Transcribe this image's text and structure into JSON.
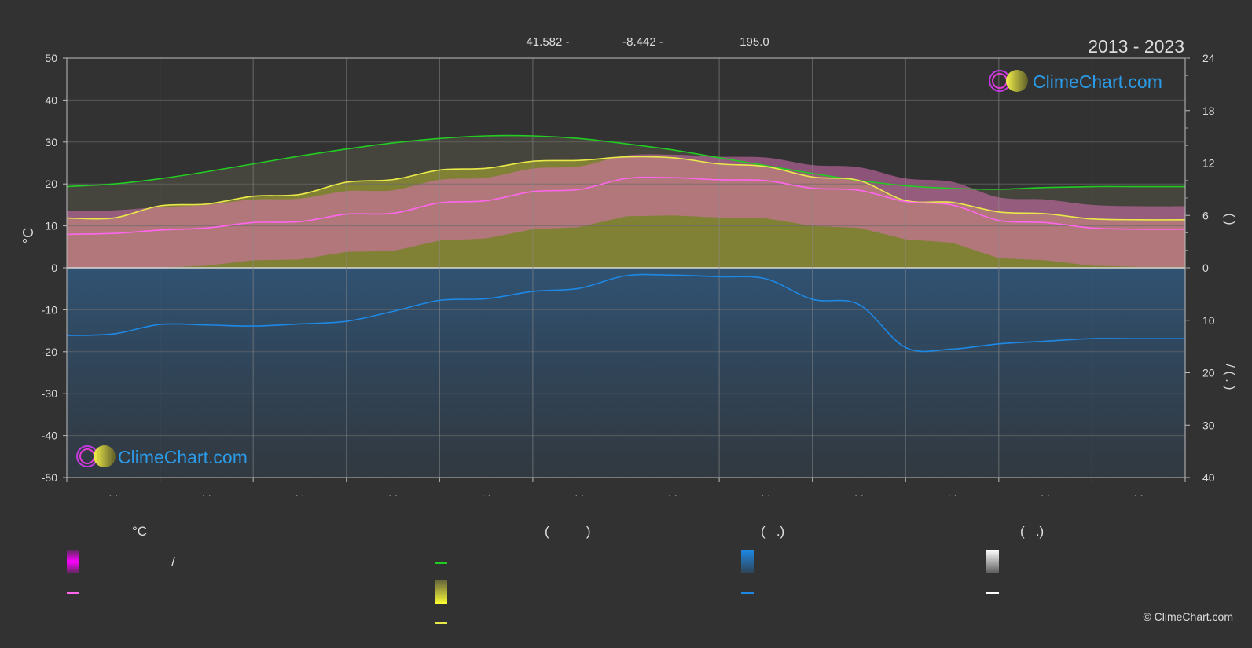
{
  "header": {
    "coords_lat": "41.582 -",
    "coords_lon": "-8.442 -",
    "elevation": "195.0",
    "period": "2013 - 2023"
  },
  "brand": {
    "name": "ClimeChart.com",
    "copyright": "© ClimeChart.com"
  },
  "chart_data": {
    "type": "line",
    "x": [
      0.5,
      1,
      1.5,
      2,
      2.5,
      3,
      3.5,
      4,
      4.5,
      5,
      5.5,
      6,
      6.5,
      7,
      7.5,
      8,
      8.5,
      9,
      9.5,
      10,
      10.5,
      11,
      11.5,
      12,
      12.5
    ],
    "xlim": [
      0.5,
      12.5
    ],
    "month_tick_labels": [
      ". .",
      ". .",
      ". .",
      ". .",
      ". .",
      ". .",
      ". .",
      ". .",
      ". .",
      ". .",
      ". .",
      ". ."
    ],
    "y_left": {
      "label": "°C",
      "lim": [
        -50,
        50
      ],
      "ticks": [
        50,
        40,
        30,
        20,
        10,
        0,
        -10,
        -20,
        -30,
        -40,
        -50
      ]
    },
    "y_right_top": {
      "lim": [
        0,
        24
      ],
      "ticks": [
        24,
        18,
        12,
        6,
        0
      ],
      "label": "(      )"
    },
    "y_right_bottom": {
      "lim": [
        0,
        40
      ],
      "ticks": [
        0,
        10,
        20,
        30,
        40
      ],
      "label": "/     (  .  )"
    },
    "grid": true,
    "series": [
      {
        "key": "daylight",
        "axis": "right_top",
        "color": "#22cc22",
        "values": [
          9.3,
          9.6,
          10.2,
          11.0,
          11.9,
          12.8,
          13.6,
          14.3,
          14.8,
          15.1,
          15.1,
          14.8,
          14.2,
          13.5,
          12.6,
          11.7,
          10.8,
          10.0,
          9.4,
          9.1,
          9.0,
          9.2,
          9.3,
          9.3,
          9.3
        ]
      },
      {
        "key": "sunshine",
        "axis": "right_top",
        "color": "#e8e84a",
        "values": [
          5.7,
          5.7,
          7.1,
          7.3,
          8.2,
          8.4,
          9.8,
          10.1,
          11.2,
          11.4,
          12.2,
          12.3,
          12.7,
          12.6,
          11.9,
          11.6,
          10.4,
          10.0,
          7.7,
          7.5,
          6.4,
          6.2,
          5.6,
          5.5,
          5.5
        ]
      },
      {
        "key": "temp_mean",
        "axis": "left",
        "color": "#ff66ee",
        "values": [
          8.0,
          8.2,
          9.0,
          9.5,
          10.8,
          11.0,
          12.8,
          13.0,
          15.5,
          16.0,
          18.2,
          18.7,
          21.3,
          21.5,
          21.0,
          20.8,
          19.0,
          18.5,
          15.8,
          15.0,
          11.3,
          10.8,
          9.5,
          9.2,
          9.2
        ]
      },
      {
        "key": "precipitation",
        "axis": "right_bottom",
        "color": "#1e88e5",
        "values": [
          12.9,
          12.6,
          10.8,
          10.9,
          11.1,
          10.7,
          10.2,
          8.3,
          6.2,
          5.9,
          4.5,
          3.9,
          1.5,
          1.4,
          1.7,
          2.1,
          6.0,
          7.0,
          15.2,
          15.5,
          14.5,
          14.0,
          13.5,
          13.5,
          13.5
        ]
      }
    ]
  },
  "legend": {
    "temp_header": "°C",
    "daylight_header": "(          )",
    "rain_header": "(   .)",
    "snow_header": "(   .)",
    "temp_range_sep": "/",
    "colors": {
      "temp_range": "#ff22ee",
      "temp_mean": "#ff66ee",
      "daylight": "#22cc22",
      "sunshine_band": "#e8e84a",
      "sunshine_line": "#e8e84a",
      "rain_band": "#1e88e5",
      "rain_line": "#1e88e5",
      "snow_band": "#ffffff",
      "snow_line": "#ffffff"
    }
  }
}
